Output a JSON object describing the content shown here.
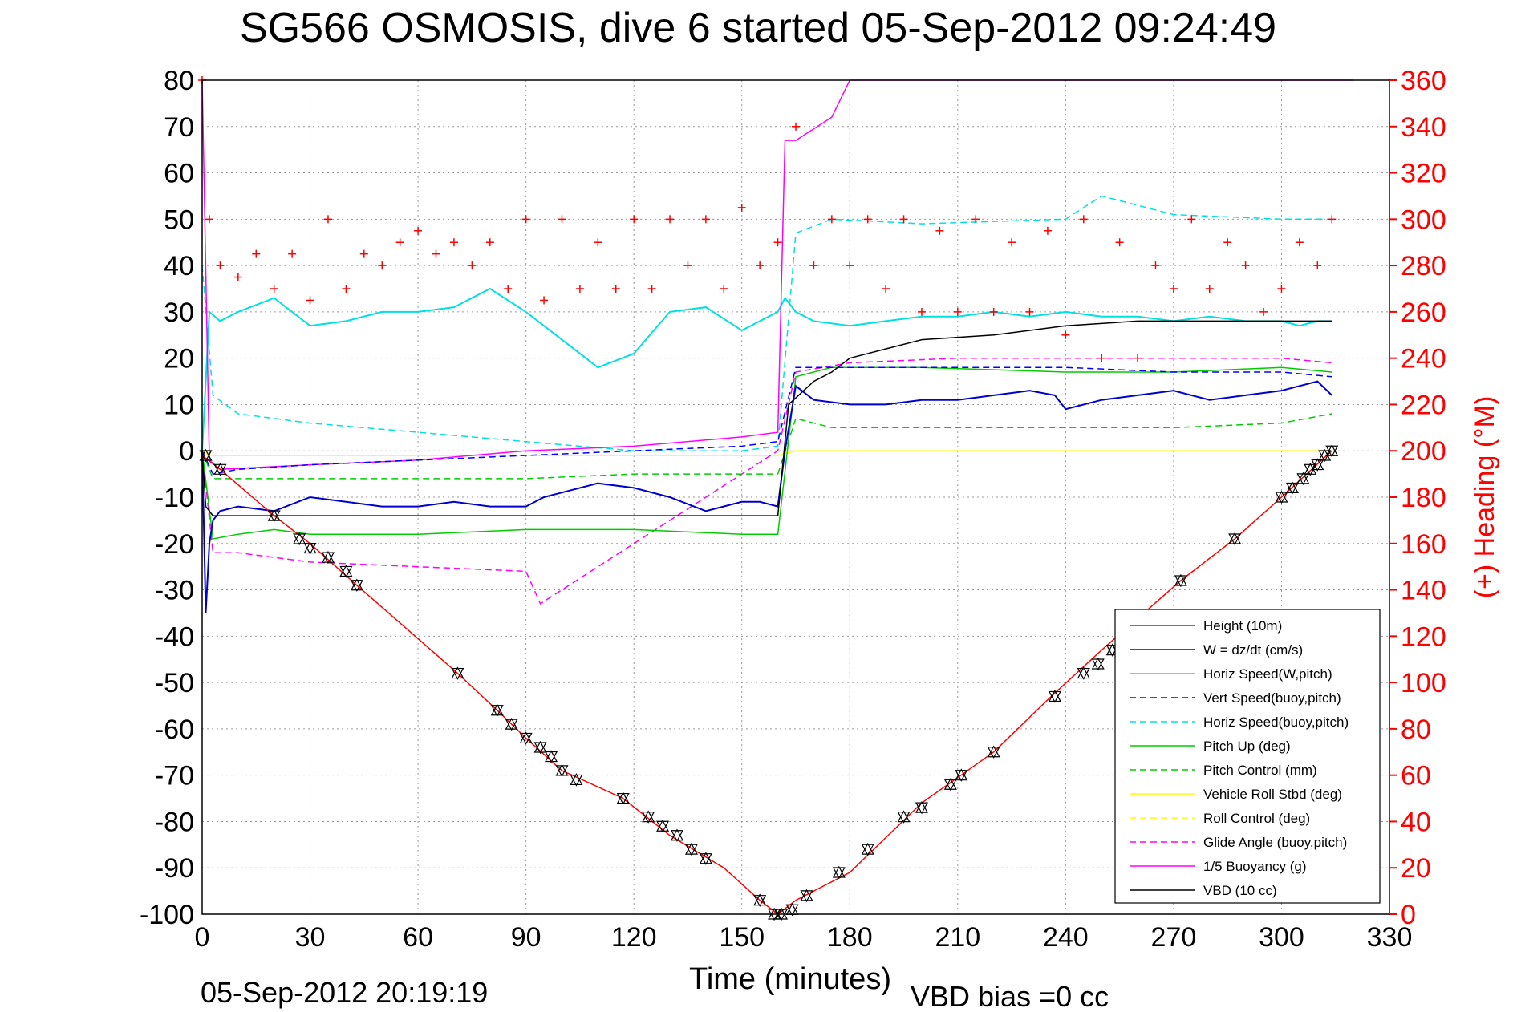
{
  "chart_data": {
    "type": "line",
    "title": "SG566 OSMOSIS, dive 6 started 05-Sep-2012 09:24:49",
    "xlabel": "Time (minutes)",
    "ylabel_right": "(+) Heading (°M)",
    "footer_left": "05-Sep-2012 20:19:19",
    "footer_right": "VBD bias =0 cc",
    "xlim": [
      0,
      330
    ],
    "ylim_left": [
      -100,
      80
    ],
    "ylim_right": [
      0,
      360
    ],
    "xticks": [
      0,
      30,
      60,
      90,
      120,
      150,
      180,
      210,
      240,
      270,
      300,
      330
    ],
    "yticks_left": [
      80,
      70,
      60,
      50,
      40,
      30,
      20,
      10,
      0,
      -10,
      -20,
      -30,
      -40,
      -50,
      -60,
      -70,
      -80,
      -90,
      -100
    ],
    "yticks_right": [
      360,
      340,
      320,
      300,
      280,
      260,
      240,
      220,
      200,
      180,
      160,
      140,
      120,
      100,
      80,
      60,
      40,
      20,
      0
    ],
    "grid": true,
    "legend_position": "bottom-right",
    "colors": {
      "height": "#ff0000",
      "w": "#0000cc",
      "horiz_speed": "#00e0e0",
      "vert_speed_buoy": "#0000ff",
      "horiz_speed_buoy": "#00e0e0",
      "pitch": "#00cc00",
      "pitch_control": "#00cc00",
      "roll": "#ffff00",
      "roll_control": "#ffff00",
      "glide": "#ff00ff",
      "buoyancy": "#ff00ff",
      "vbd": "#000000",
      "heading": "#ff0000"
    },
    "series": [
      {
        "name": "Height (10m)",
        "key": "height",
        "dash": "",
        "x": [
          0,
          5,
          20,
          30,
          43,
          71,
          82,
          90,
          100,
          117,
          130,
          145,
          155,
          160,
          165,
          180,
          200,
          220,
          236,
          250,
          272,
          287,
          300,
          314
        ],
        "y": [
          -1,
          -4,
          -14,
          -20,
          -29,
          -48,
          -56,
          -62,
          -69,
          -75,
          -83,
          -90,
          -97,
          -100,
          -97,
          -91,
          -76,
          -65,
          -53,
          -43,
          -28,
          -19,
          -10,
          0
        ]
      },
      {
        "name": "W = dz/dt (cm/s)",
        "key": "w",
        "dash": "",
        "x": [
          0,
          1,
          2,
          3,
          5,
          10,
          20,
          30,
          40,
          50,
          60,
          70,
          80,
          90,
          95,
          100,
          110,
          120,
          130,
          140,
          150,
          155,
          160,
          162,
          165,
          170,
          180,
          190,
          200,
          210,
          220,
          230,
          237,
          240,
          250,
          260,
          270,
          280,
          290,
          300,
          305,
          310,
          314
        ],
        "y": [
          0,
          -35,
          -20,
          -15,
          -13,
          -12,
          -13,
          -10,
          -11,
          -12,
          -12,
          -11,
          -12,
          -12,
          -10,
          -9,
          -7,
          -8,
          -10,
          -13,
          -11,
          -11,
          -12,
          0,
          14,
          11,
          10,
          10,
          11,
          11,
          12,
          13,
          12,
          9,
          11,
          12,
          13,
          11,
          12,
          13,
          14,
          15,
          12
        ]
      },
      {
        "name": "Horiz Speed(W,pitch)",
        "key": "horiz_speed",
        "dash": "",
        "x": [
          0,
          2,
          5,
          10,
          20,
          30,
          40,
          50,
          60,
          70,
          80,
          90,
          100,
          110,
          120,
          130,
          140,
          150,
          155,
          160,
          162,
          165,
          170,
          180,
          190,
          200,
          210,
          220,
          230,
          240,
          250,
          260,
          270,
          280,
          290,
          300,
          305,
          310,
          314
        ],
        "y": [
          0,
          30,
          28,
          30,
          33,
          27,
          28,
          30,
          30,
          31,
          35,
          30,
          24,
          18,
          21,
          30,
          31,
          26,
          28,
          30,
          33,
          30,
          28,
          27,
          28,
          29,
          29,
          30,
          29,
          30,
          29,
          29,
          28,
          29,
          28,
          28,
          27,
          28,
          28
        ]
      },
      {
        "name": "Vert Speed(buoy,pitch)",
        "key": "vert_speed_buoy",
        "dash": "8,5",
        "x": [
          0,
          3,
          10,
          30,
          60,
          90,
          120,
          150,
          160,
          165,
          180,
          210,
          240,
          270,
          300,
          314
        ],
        "y": [
          0,
          -5,
          -4,
          -3,
          -2,
          -1,
          0,
          1,
          2,
          18,
          18,
          18,
          18,
          17,
          17,
          16
        ]
      },
      {
        "name": "Horiz Speed(buoy,pitch)",
        "key": "horiz_speed_buoy",
        "dash": "8,5",
        "x": [
          0,
          3,
          10,
          30,
          60,
          90,
          120,
          150,
          160,
          165,
          175,
          200,
          240,
          250,
          270,
          300,
          314
        ],
        "y": [
          40,
          12,
          8,
          6,
          4,
          2,
          0,
          0,
          1,
          47,
          50,
          49,
          50,
          55,
          51,
          50,
          50
        ]
      },
      {
        "name": "Pitch Up (deg)",
        "key": "pitch",
        "dash": "",
        "x": [
          0,
          3,
          10,
          20,
          30,
          60,
          90,
          100,
          120,
          150,
          160,
          165,
          175,
          200,
          240,
          270,
          300,
          314
        ],
        "y": [
          0,
          -19,
          -18,
          -17,
          -18,
          -18,
          -17,
          -17,
          -17,
          -18,
          -18,
          16,
          18,
          18,
          17,
          17,
          18,
          17
        ]
      },
      {
        "name": "Pitch Control (mm)",
        "key": "pitch_control",
        "dash": "8,5",
        "x": [
          0,
          3,
          10,
          30,
          60,
          90,
          120,
          150,
          160,
          165,
          175,
          200,
          240,
          270,
          300,
          314
        ],
        "y": [
          0,
          -6,
          -6,
          -6,
          -6,
          -6,
          -5,
          -5,
          -5,
          7,
          5,
          5,
          5,
          5,
          6,
          8
        ]
      },
      {
        "name": "Vehicle Roll Stbd (deg)",
        "key": "roll",
        "dash": "",
        "x": [
          0,
          2,
          5,
          60,
          120,
          160,
          165,
          200,
          250,
          300,
          314
        ],
        "y": [
          0,
          -1,
          -1,
          -1,
          -1,
          -1,
          0,
          0,
          0,
          0,
          0
        ]
      },
      {
        "name": "Roll Control (deg)",
        "key": "roll_control",
        "dash": "8,5",
        "x": [
          0,
          3,
          60,
          120,
          160,
          165,
          200,
          250,
          300,
          314
        ],
        "y": [
          0,
          -1,
          -1,
          -1,
          -1,
          0,
          0,
          0,
          0,
          0
        ]
      },
      {
        "name": "Glide Angle (buoy,pitch)",
        "key": "glide",
        "dash": "8,5",
        "x": [
          0,
          3,
          10,
          30,
          60,
          90,
          94,
          160,
          165,
          180,
          210,
          240,
          270,
          300,
          314
        ],
        "y": [
          0,
          -22,
          -22,
          -24,
          -25,
          -26,
          -33,
          0,
          17,
          19,
          20,
          20,
          20,
          20,
          19
        ]
      },
      {
        "name": "1/5 Buoyancy (g)",
        "key": "buoyancy",
        "dash": "",
        "x": [
          0,
          2,
          5,
          30,
          60,
          90,
          120,
          150,
          160,
          162,
          165,
          175,
          180,
          182,
          320
        ],
        "y": [
          80,
          -2,
          -4,
          -3,
          -2,
          0,
          1,
          3,
          4,
          67,
          67,
          72,
          80,
          80,
          80
        ]
      },
      {
        "name": "VBD (10 cc)",
        "key": "vbd",
        "dash": "",
        "x": [
          0,
          1,
          3,
          160,
          163,
          170,
          175,
          180,
          190,
          200,
          220,
          240,
          260,
          280,
          300,
          314
        ],
        "y": [
          0,
          -12,
          -14,
          -14,
          10,
          15,
          17,
          20,
          22,
          24,
          25,
          27,
          28,
          28,
          28,
          28
        ]
      }
    ],
    "heading_series": {
      "name": "(+) Heading",
      "key": "heading",
      "axis": "right",
      "x": [
        0,
        2,
        5,
        10,
        15,
        20,
        25,
        30,
        35,
        40,
        45,
        50,
        55,
        60,
        65,
        70,
        75,
        80,
        85,
        90,
        95,
        100,
        105,
        110,
        115,
        120,
        125,
        130,
        135,
        140,
        145,
        150,
        155,
        160,
        165,
        170,
        175,
        180,
        185,
        190,
        195,
        200,
        205,
        210,
        215,
        220,
        225,
        230,
        235,
        240,
        245,
        250,
        255,
        260,
        265,
        270,
        275,
        280,
        285,
        290,
        295,
        300,
        305,
        310,
        314
      ],
      "y": [
        360,
        300,
        280,
        275,
        285,
        270,
        285,
        265,
        300,
        270,
        285,
        280,
        290,
        295,
        285,
        290,
        280,
        290,
        270,
        300,
        265,
        300,
        270,
        290,
        270,
        300,
        270,
        300,
        280,
        300,
        270,
        305,
        280,
        290,
        340,
        280,
        300,
        280,
        300,
        270,
        300,
        260,
        295,
        260,
        300,
        260,
        290,
        260,
        295,
        250,
        300,
        240,
        290,
        240,
        280,
        270,
        300,
        270,
        290,
        280,
        260,
        270,
        290,
        280,
        300
      ]
    },
    "markers": {
      "name": "markers",
      "x": [
        1,
        5,
        20,
        27,
        30,
        35,
        40,
        43,
        71,
        82,
        86,
        90,
        94,
        97,
        100,
        104,
        117,
        124,
        128,
        132,
        136,
        140,
        155,
        159,
        161,
        164,
        168,
        177,
        185,
        195,
        200,
        208,
        211,
        220,
        237,
        245,
        249,
        253,
        272,
        287,
        300,
        303,
        306,
        308,
        310,
        312,
        314
      ],
      "y": [
        -1,
        -4,
        -14,
        -19,
        -21,
        -23,
        -26,
        -29,
        -48,
        -56,
        -59,
        -62,
        -64,
        -66,
        -69,
        -71,
        -75,
        -79,
        -81,
        -83,
        -86,
        -88,
        -97,
        -100,
        -100,
        -99,
        -96,
        -91,
        -86,
        -79,
        -77,
        -72,
        -70,
        -65,
        -53,
        -48,
        -46,
        -43,
        -28,
        -19,
        -10,
        -8,
        -6,
        -4,
        -3,
        -1,
        0
      ]
    }
  }
}
